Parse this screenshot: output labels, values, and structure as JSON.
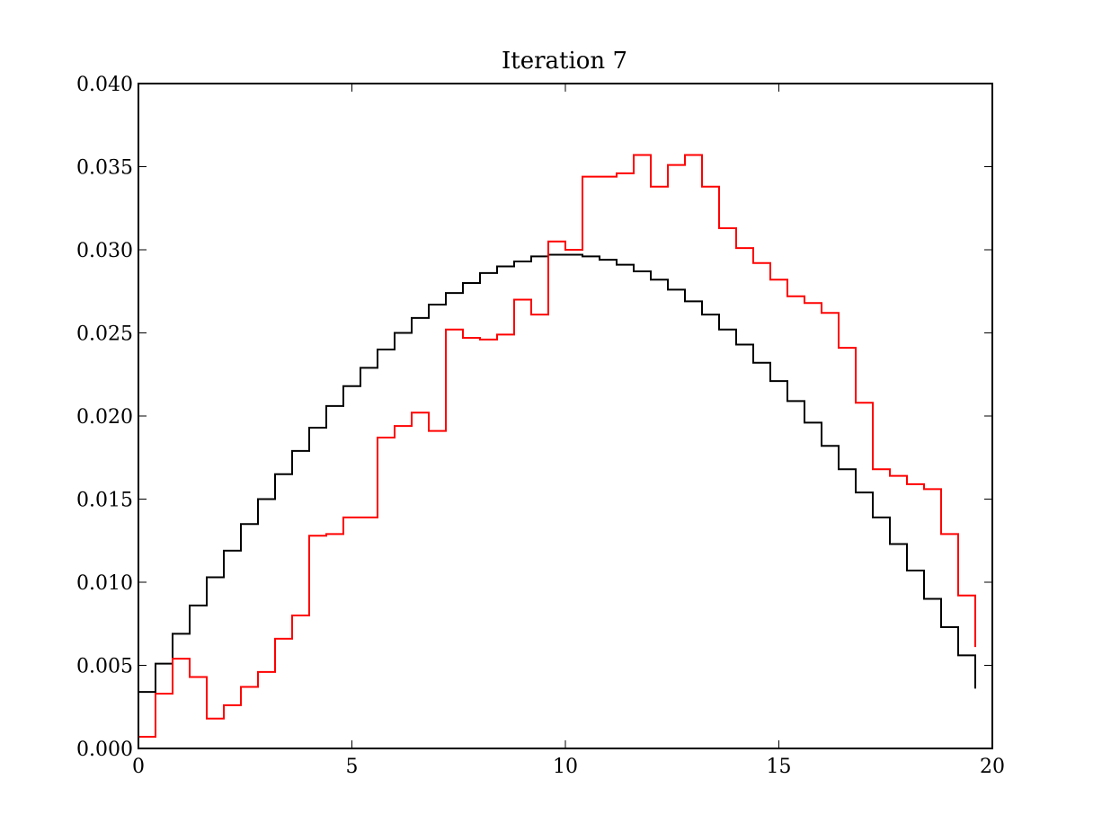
{
  "chart_data": {
    "type": "line",
    "title": "Iteration 7",
    "xlabel": "",
    "ylabel": "",
    "xlim": [
      0,
      20
    ],
    "ylim": [
      0,
      0.04
    ],
    "xticks": [
      0,
      5,
      10,
      15,
      20
    ],
    "xtick_labels": [
      "0",
      "5",
      "10",
      "15",
      "20"
    ],
    "yticks": [
      0,
      0.005,
      0.01,
      0.015,
      0.02,
      0.025,
      0.03,
      0.035,
      0.04
    ],
    "ytick_labels": [
      "0.000",
      "0.005",
      "0.010",
      "0.015",
      "0.020",
      "0.025",
      "0.030",
      "0.035",
      "0.040"
    ],
    "grid": false,
    "legend": "none",
    "step": "post",
    "x": [
      0.0,
      0.4,
      0.8,
      1.2,
      1.6,
      2.0,
      2.4,
      2.8,
      3.2,
      3.6,
      4.0,
      4.4,
      4.8,
      5.2,
      5.6,
      6.0,
      6.4,
      6.8,
      7.2,
      7.6,
      8.0,
      8.4,
      8.8,
      9.2,
      9.6,
      10.0,
      10.4,
      10.8,
      11.2,
      11.6,
      12.0,
      12.4,
      12.8,
      13.2,
      13.6,
      14.0,
      14.4,
      14.8,
      15.2,
      15.6,
      16.0,
      16.4,
      16.8,
      17.2,
      17.6,
      18.0,
      18.4,
      18.8,
      19.2,
      19.6
    ],
    "series": [
      {
        "color": "#000000",
        "values": [
          0.0034,
          0.0051,
          0.0069,
          0.0086,
          0.0103,
          0.0119,
          0.0135,
          0.015,
          0.0165,
          0.0179,
          0.0193,
          0.0206,
          0.0218,
          0.0229,
          0.024,
          0.025,
          0.0259,
          0.0267,
          0.0274,
          0.028,
          0.0286,
          0.029,
          0.0293,
          0.0296,
          0.0297,
          0.0297,
          0.0296,
          0.0294,
          0.0291,
          0.0287,
          0.0282,
          0.0276,
          0.0269,
          0.0261,
          0.0252,
          0.0243,
          0.0232,
          0.0221,
          0.0209,
          0.0196,
          0.0182,
          0.0168,
          0.0154,
          0.0139,
          0.0123,
          0.0107,
          0.009,
          0.0073,
          0.0056,
          0.0036
        ]
      },
      {
        "color": "#ff0000",
        "values": [
          0.0007,
          0.0033,
          0.0054,
          0.0043,
          0.0018,
          0.0026,
          0.0037,
          0.0046,
          0.0066,
          0.008,
          0.0128,
          0.0129,
          0.0139,
          0.0139,
          0.0187,
          0.0194,
          0.0202,
          0.0191,
          0.0252,
          0.0247,
          0.0246,
          0.0249,
          0.027,
          0.0261,
          0.0305,
          0.03,
          0.0344,
          0.0344,
          0.0346,
          0.0357,
          0.0338,
          0.0351,
          0.0357,
          0.0338,
          0.0313,
          0.0301,
          0.0292,
          0.0282,
          0.0272,
          0.0268,
          0.0262,
          0.0241,
          0.0208,
          0.0168,
          0.0164,
          0.0159,
          0.0156,
          0.0129,
          0.0092,
          0.0061
        ]
      }
    ]
  }
}
